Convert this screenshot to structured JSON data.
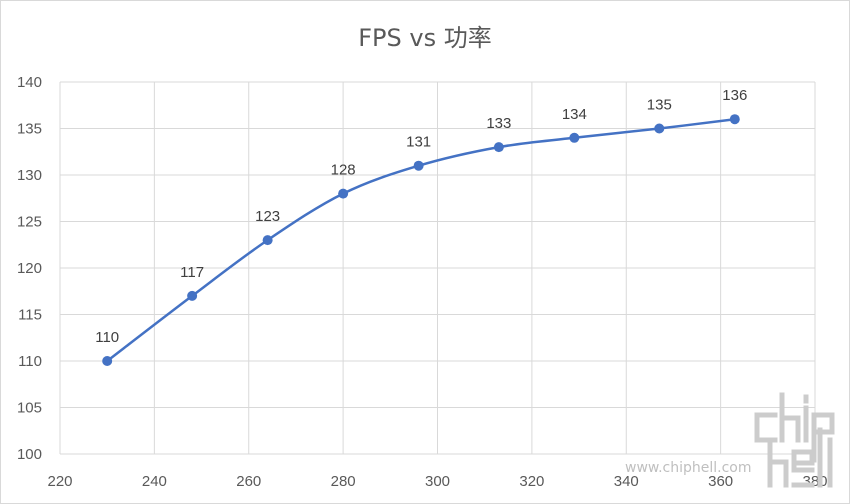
{
  "chart_data": {
    "type": "line",
    "title": "FPS vs 功率",
    "xlabel": "",
    "ylabel": "",
    "xlim": [
      220,
      380
    ],
    "ylim": [
      100,
      140
    ],
    "xticks": [
      220,
      240,
      260,
      280,
      300,
      320,
      340,
      360,
      380
    ],
    "yticks": [
      100,
      105,
      110,
      115,
      120,
      125,
      130,
      135,
      140
    ],
    "grid": true,
    "smooth": true,
    "series": [
      {
        "color": "#4472c4",
        "x": [
          230,
          248,
          264,
          280,
          296,
          313,
          329,
          347,
          363
        ],
        "y": [
          110,
          117,
          123,
          128,
          131,
          133,
          134,
          135,
          136
        ],
        "labels": [
          "110",
          "117",
          "123",
          "128",
          "131",
          "133",
          "134",
          "135",
          "136"
        ]
      }
    ]
  },
  "watermark": {
    "logo_text": "chip hell",
    "url_text": "www.chiphell.com"
  }
}
